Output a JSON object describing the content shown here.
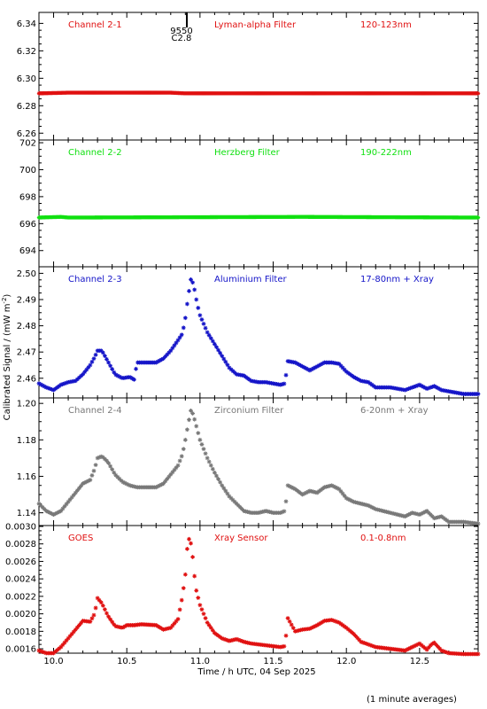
{
  "figure": {
    "ylabel": "Calibrated Signal / (mW m",
    "ylabel_sup": "-2",
    "ylabel_close": ")",
    "xlabel": "Time / h UTC, 04 Sep 2025",
    "footnote": "(1 minute averages)",
    "marker_top": "9550",
    "marker_bottom": "C2.8",
    "marker_time": 10.91,
    "x_range": [
      9.9,
      12.9
    ],
    "x_ticks": [
      "10.0",
      "10.5",
      "11.0",
      "11.5",
      "12.0",
      "12.5"
    ],
    "colors": {
      "red": "#e01010",
      "green": "#10e010",
      "blue": "#1414c8",
      "gray": "#787878",
      "axis": "#000000"
    }
  },
  "chart_data": [
    {
      "type": "scatter",
      "channel_label": "Channel 2-1",
      "filter_label": "Lyman-alpha Filter",
      "band_label": "120-123nm",
      "color": "#e01010",
      "ylim": [
        6.255,
        6.348
      ],
      "y_ticks": [
        "6.26",
        "6.28",
        "6.30",
        "6.32",
        "6.34"
      ],
      "x": [
        9.9,
        10.1,
        10.8,
        10.9,
        12.9
      ],
      "y": [
        6.289,
        6.2895,
        6.2895,
        6.289,
        6.289
      ]
    },
    {
      "type": "scatter",
      "channel_label": "Channel 2-2",
      "filter_label": "Herzberg Filter",
      "band_label": "190-222nm",
      "color": "#10e010",
      "ylim": [
        692.8,
        702.2
      ],
      "y_ticks": [
        "694",
        "696",
        "698",
        "700",
        "702"
      ],
      "x": [
        9.9,
        10.05,
        10.1,
        11.7,
        12.9
      ],
      "y": [
        696.45,
        696.5,
        696.45,
        696.5,
        696.45
      ]
    },
    {
      "type": "scatter",
      "channel_label": "Channel 2-3",
      "filter_label": "Aluminium Filter",
      "band_label": "17-80nm + Xray",
      "color": "#1414c8",
      "ylim": [
        2.4525,
        2.5025
      ],
      "y_ticks": [
        "2.46",
        "2.47",
        "2.48",
        "2.49",
        "2.50"
      ],
      "x": [
        9.9,
        9.95,
        10.0,
        10.05,
        10.1,
        10.15,
        10.2,
        10.25,
        10.28,
        10.3,
        10.33,
        10.37,
        10.42,
        10.47,
        10.52,
        10.55,
        10.57,
        10.6,
        10.7,
        10.75,
        10.8,
        10.85,
        10.88,
        10.9,
        10.92,
        10.94,
        10.96,
        10.98,
        11.0,
        11.05,
        11.1,
        11.15,
        11.2,
        11.25,
        11.3,
        11.35,
        11.4,
        11.45,
        11.5,
        11.55,
        11.58,
        11.6,
        11.65,
        11.7,
        11.75,
        11.8,
        11.85,
        11.9,
        11.95,
        12.0,
        12.05,
        12.1,
        12.15,
        12.2,
        12.3,
        12.4,
        12.45,
        12.5,
        12.55,
        12.6,
        12.65,
        12.7,
        12.8,
        12.9
      ],
      "y": [
        2.458,
        2.4565,
        2.4555,
        2.4575,
        2.4585,
        2.459,
        2.4615,
        2.465,
        2.468,
        2.4705,
        2.4705,
        2.4665,
        2.4615,
        2.46,
        2.4605,
        2.4595,
        2.466,
        2.466,
        2.466,
        2.4675,
        2.4705,
        2.4745,
        2.477,
        2.483,
        2.4915,
        2.4985,
        2.4945,
        2.4885,
        2.484,
        2.4775,
        2.473,
        2.4685,
        2.464,
        2.4615,
        2.461,
        2.459,
        2.4585,
        2.4585,
        2.458,
        2.4575,
        2.458,
        2.4665,
        2.466,
        2.4645,
        2.463,
        2.4645,
        2.466,
        2.466,
        2.4655,
        2.4625,
        2.4605,
        2.459,
        2.4585,
        2.4565,
        2.4565,
        2.4555,
        2.4565,
        2.4575,
        2.456,
        2.457,
        2.4555,
        2.455,
        2.454,
        2.454
      ]
    },
    {
      "type": "scatter",
      "channel_label": "Channel 2-4",
      "filter_label": "Zirconium Filter",
      "band_label": "6-20nm + Xray",
      "color": "#787878",
      "ylim": [
        1.133,
        1.203
      ],
      "y_ticks": [
        "1.14",
        "1.16",
        "1.18",
        "1.20"
      ],
      "x": [
        9.9,
        9.95,
        10.0,
        10.05,
        10.1,
        10.15,
        10.2,
        10.25,
        10.28,
        10.3,
        10.33,
        10.37,
        10.42,
        10.47,
        10.52,
        10.57,
        10.6,
        10.7,
        10.75,
        10.8,
        10.85,
        10.88,
        10.9,
        10.92,
        10.94,
        10.96,
        10.98,
        11.0,
        11.05,
        11.1,
        11.15,
        11.2,
        11.25,
        11.3,
        11.35,
        11.4,
        11.45,
        11.5,
        11.55,
        11.58,
        11.6,
        11.65,
        11.7,
        11.75,
        11.8,
        11.85,
        11.9,
        11.95,
        12.0,
        12.05,
        12.1,
        12.15,
        12.2,
        12.3,
        12.4,
        12.45,
        12.5,
        12.55,
        12.6,
        12.65,
        12.7,
        12.8,
        12.9
      ],
      "y": [
        1.145,
        1.141,
        1.139,
        1.141,
        1.146,
        1.151,
        1.156,
        1.158,
        1.164,
        1.17,
        1.171,
        1.168,
        1.161,
        1.157,
        1.155,
        1.154,
        1.154,
        1.154,
        1.156,
        1.161,
        1.166,
        1.172,
        1.18,
        1.189,
        1.197,
        1.192,
        1.186,
        1.18,
        1.17,
        1.162,
        1.155,
        1.149,
        1.145,
        1.141,
        1.14,
        1.14,
        1.141,
        1.14,
        1.14,
        1.141,
        1.155,
        1.153,
        1.15,
        1.152,
        1.151,
        1.154,
        1.155,
        1.153,
        1.148,
        1.146,
        1.145,
        1.144,
        1.142,
        1.14,
        1.138,
        1.14,
        1.139,
        1.141,
        1.137,
        1.138,
        1.135,
        1.135,
        1.134
      ]
    },
    {
      "type": "scatter",
      "channel_label": "GOES",
      "filter_label": "Xray Sensor",
      "band_label": "0.1-0.8nm",
      "color": "#e01010",
      "ylim": [
        0.00155,
        0.00301
      ],
      "y_ticks": [
        "0.0016",
        "0.0018",
        "0.0020",
        "0.0022",
        "0.0024",
        "0.0026",
        "0.0028",
        "0.0030"
      ],
      "x": [
        9.9,
        9.95,
        10.0,
        10.05,
        10.1,
        10.15,
        10.2,
        10.25,
        10.28,
        10.3,
        10.33,
        10.37,
        10.42,
        10.47,
        10.5,
        10.55,
        10.6,
        10.7,
        10.75,
        10.8,
        10.85,
        10.88,
        10.9,
        10.91,
        10.93,
        10.95,
        10.97,
        11.0,
        11.05,
        11.1,
        11.15,
        11.2,
        11.25,
        11.3,
        11.35,
        11.4,
        11.45,
        11.5,
        11.55,
        11.58,
        11.6,
        11.65,
        11.7,
        11.75,
        11.8,
        11.85,
        11.9,
        11.95,
        12.0,
        12.05,
        12.1,
        12.15,
        12.2,
        12.3,
        12.4,
        12.45,
        12.5,
        12.55,
        12.58,
        12.6,
        12.65,
        12.7,
        12.8,
        12.9
      ],
      "y": [
        0.00158,
        0.00155,
        0.00155,
        0.00162,
        0.00172,
        0.00182,
        0.00192,
        0.00191,
        0.002,
        0.00218,
        0.00212,
        0.00198,
        0.00186,
        0.00184,
        0.00187,
        0.00187,
        0.00188,
        0.00187,
        0.00182,
        0.00184,
        0.00194,
        0.0022,
        0.00245,
        0.00272,
        0.0029,
        0.00265,
        0.0023,
        0.0021,
        0.0019,
        0.00178,
        0.00172,
        0.00169,
        0.00171,
        0.00168,
        0.00166,
        0.00165,
        0.00164,
        0.00163,
        0.00162,
        0.00163,
        0.00195,
        0.0018,
        0.00182,
        0.00183,
        0.00187,
        0.00192,
        0.00193,
        0.0019,
        0.00184,
        0.00177,
        0.00168,
        0.00165,
        0.00162,
        0.0016,
        0.00158,
        0.00162,
        0.00166,
        0.00159,
        0.00165,
        0.00167,
        0.00158,
        0.00155,
        0.00154,
        0.00154
      ]
    }
  ]
}
